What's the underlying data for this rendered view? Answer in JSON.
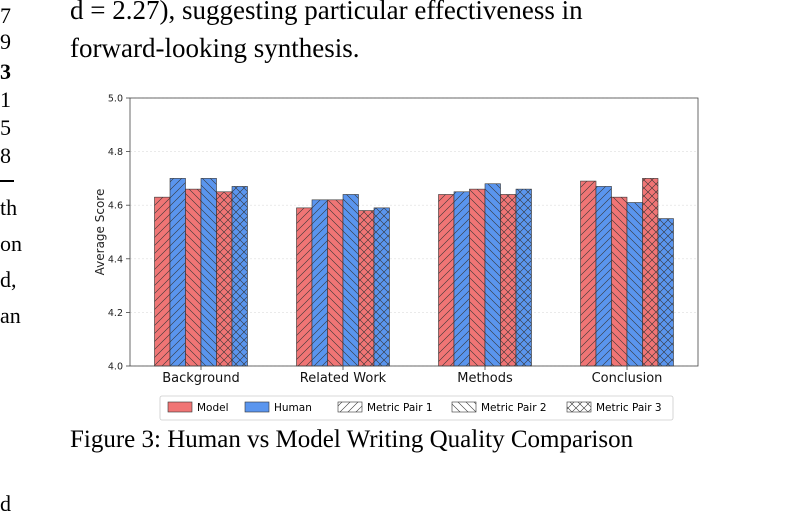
{
  "paper": {
    "line1": "d = 2.27), suggesting particular effectiveness in",
    "line2": "forward-looking synthesis.",
    "left_fragments": [
      "7",
      "9",
      "3",
      "1",
      "5",
      "8",
      "th",
      "on",
      "d,",
      "an",
      "d"
    ],
    "caption": "Figure 3: Human vs Model Writing Quality Comparison"
  },
  "chart_data": {
    "type": "bar",
    "title": "",
    "xlabel": "",
    "ylabel": "Average Score",
    "ylim": [
      4.0,
      5.0
    ],
    "yticks": [
      "4.0",
      "4.2",
      "4.4",
      "4.6",
      "4.8",
      "5.0"
    ],
    "categories": [
      "Background",
      "Related Work",
      "Methods",
      "Conclusion"
    ],
    "grid": true,
    "legend_position": "bottom",
    "legend": [
      "Model",
      "Human",
      "Metric Pair 1",
      "Metric Pair 2",
      "Metric Pair 3"
    ],
    "colors": {
      "model": "#f07575",
      "human": "#5a95ee"
    },
    "bars": [
      [
        {
          "color": "model",
          "hatch": "/",
          "value": 4.63
        },
        {
          "color": "human",
          "hatch": "/",
          "value": 4.7
        },
        {
          "color": "model",
          "hatch": "\\",
          "value": 4.66
        },
        {
          "color": "human",
          "hatch": "\\",
          "value": 4.7
        },
        {
          "color": "model",
          "hatch": "x",
          "value": 4.65
        },
        {
          "color": "human",
          "hatch": "x",
          "value": 4.67
        }
      ],
      [
        {
          "color": "model",
          "hatch": "/",
          "value": 4.59
        },
        {
          "color": "human",
          "hatch": "/",
          "value": 4.62
        },
        {
          "color": "model",
          "hatch": "\\",
          "value": 4.62
        },
        {
          "color": "human",
          "hatch": "\\",
          "value": 4.64
        },
        {
          "color": "model",
          "hatch": "x",
          "value": 4.58
        },
        {
          "color": "human",
          "hatch": "x",
          "value": 4.59
        }
      ],
      [
        {
          "color": "model",
          "hatch": "/",
          "value": 4.64
        },
        {
          "color": "human",
          "hatch": "/",
          "value": 4.65
        },
        {
          "color": "model",
          "hatch": "\\",
          "value": 4.66
        },
        {
          "color": "human",
          "hatch": "\\",
          "value": 4.68
        },
        {
          "color": "model",
          "hatch": "x",
          "value": 4.64
        },
        {
          "color": "human",
          "hatch": "x",
          "value": 4.66
        }
      ],
      [
        {
          "color": "model",
          "hatch": "/",
          "value": 4.69
        },
        {
          "color": "human",
          "hatch": "/",
          "value": 4.67
        },
        {
          "color": "model",
          "hatch": "\\",
          "value": 4.63
        },
        {
          "color": "human",
          "hatch": "\\",
          "value": 4.61
        },
        {
          "color": "model",
          "hatch": "x",
          "value": 4.7
        },
        {
          "color": "human",
          "hatch": "x",
          "value": 4.55
        }
      ]
    ]
  }
}
